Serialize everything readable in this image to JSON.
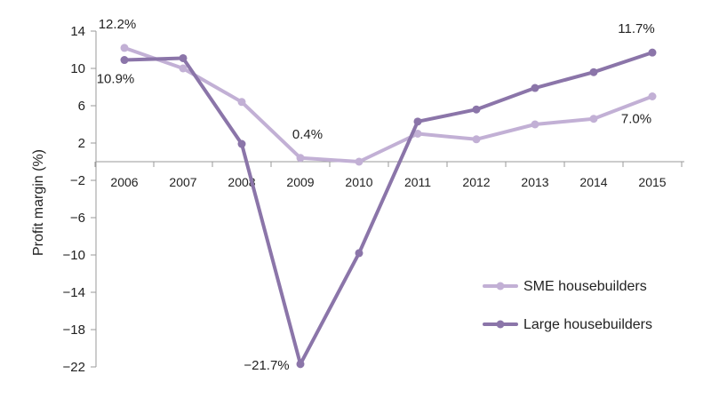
{
  "chart_data": {
    "type": "line",
    "categories": [
      "2006",
      "2007",
      "2008",
      "2009",
      "2010",
      "2011",
      "2012",
      "2013",
      "2014",
      "2015"
    ],
    "series": [
      {
        "name": "SME housebuilders",
        "color": "#c2b0d5",
        "values": [
          12.2,
          10.0,
          6.4,
          0.4,
          0.0,
          3.0,
          2.4,
          4.0,
          4.6,
          7.0
        ]
      },
      {
        "name": "Large housebuilders",
        "color": "#8b75a9",
        "values": [
          10.9,
          11.1,
          1.9,
          -21.7,
          -9.8,
          4.3,
          5.6,
          7.9,
          9.6,
          11.7
        ]
      }
    ],
    "data_labels": [
      {
        "series": 0,
        "index": 0,
        "text": "12.2%"
      },
      {
        "series": 1,
        "index": 0,
        "text": "10.9%"
      },
      {
        "series": 0,
        "index": 3,
        "text": "0.4%"
      },
      {
        "series": 1,
        "index": 3,
        "text": "−21.7%"
      },
      {
        "series": 1,
        "index": 9,
        "text": "11.7%"
      },
      {
        "series": 0,
        "index": 9,
        "text": "7.0%"
      }
    ],
    "y_ticks": [
      "14",
      "10",
      "6",
      "2",
      "−2",
      "−6",
      "−10",
      "−14",
      "−18",
      "−22"
    ],
    "y_tick_values": [
      14,
      10,
      6,
      2,
      -2,
      -6,
      -10,
      -14,
      -18,
      -22
    ],
    "ylabel": "Profit margin (%)",
    "ylim": [
      -22,
      14
    ],
    "grid": false,
    "legend_position": "bottom-right"
  }
}
